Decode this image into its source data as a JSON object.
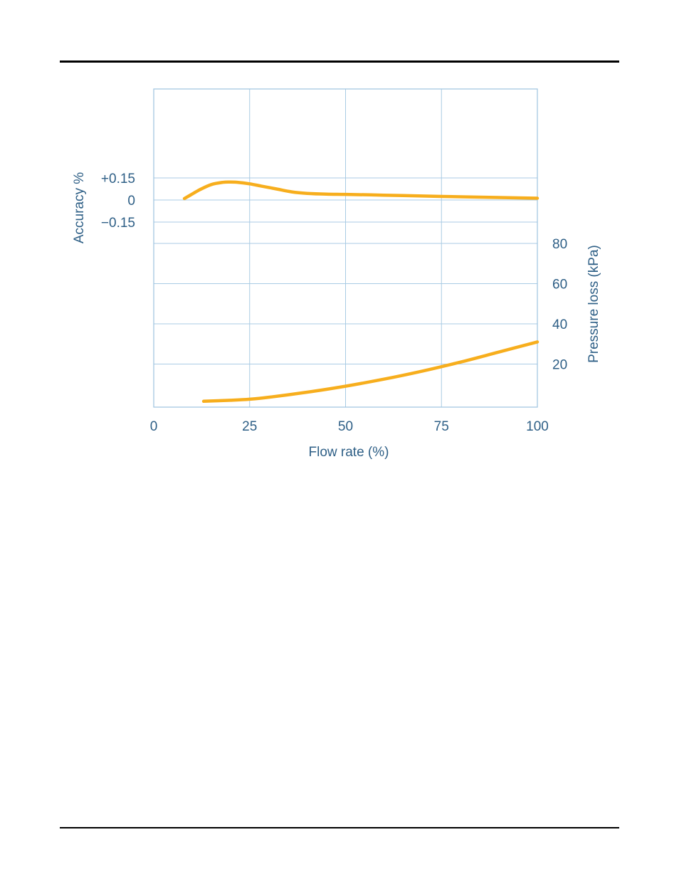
{
  "chart_data": {
    "type": "line",
    "xlabel": "Flow rate (%)",
    "x_ticks": [
      0,
      25,
      50,
      75,
      100
    ],
    "xlim": [
      0,
      100
    ],
    "grid": true,
    "top_panel": {
      "ylabel": "Accuracy %",
      "y_tick_labels": [
        "+0.15",
        "0",
        "−0.15"
      ],
      "y_tick_values": [
        0.15,
        0,
        -0.15
      ],
      "ylim": [
        -0.15,
        0.15
      ],
      "series": [
        {
          "x": [
            8,
            10,
            12,
            15,
            18,
            20,
            22,
            25,
            28,
            32,
            36,
            40,
            45,
            50,
            60,
            70,
            80,
            90,
            100
          ],
          "y": [
            0.01,
            0.04,
            0.07,
            0.105,
            0.12,
            0.122,
            0.12,
            0.11,
            0.095,
            0.075,
            0.055,
            0.045,
            0.04,
            0.038,
            0.033,
            0.027,
            0.022,
            0.017,
            0.012
          ]
        }
      ]
    },
    "bottom_panel": {
      "ylabel": "Pressure loss (kPa)",
      "y_ticks": [
        20,
        40,
        60,
        80
      ],
      "ylim": [
        0,
        80
      ],
      "series": [
        {
          "x": [
            13,
            20,
            25,
            30,
            40,
            50,
            60,
            70,
            80,
            90,
            100
          ],
          "y": [
            1.5,
            2,
            2.5,
            3.5,
            6,
            9,
            12.5,
            16.5,
            21,
            26,
            31
          ]
        }
      ]
    },
    "colors": {
      "line": "#f7ae1d",
      "grid": "#a9cbe4",
      "frame": "#9cc3e0",
      "text": "#2e5f86"
    }
  }
}
